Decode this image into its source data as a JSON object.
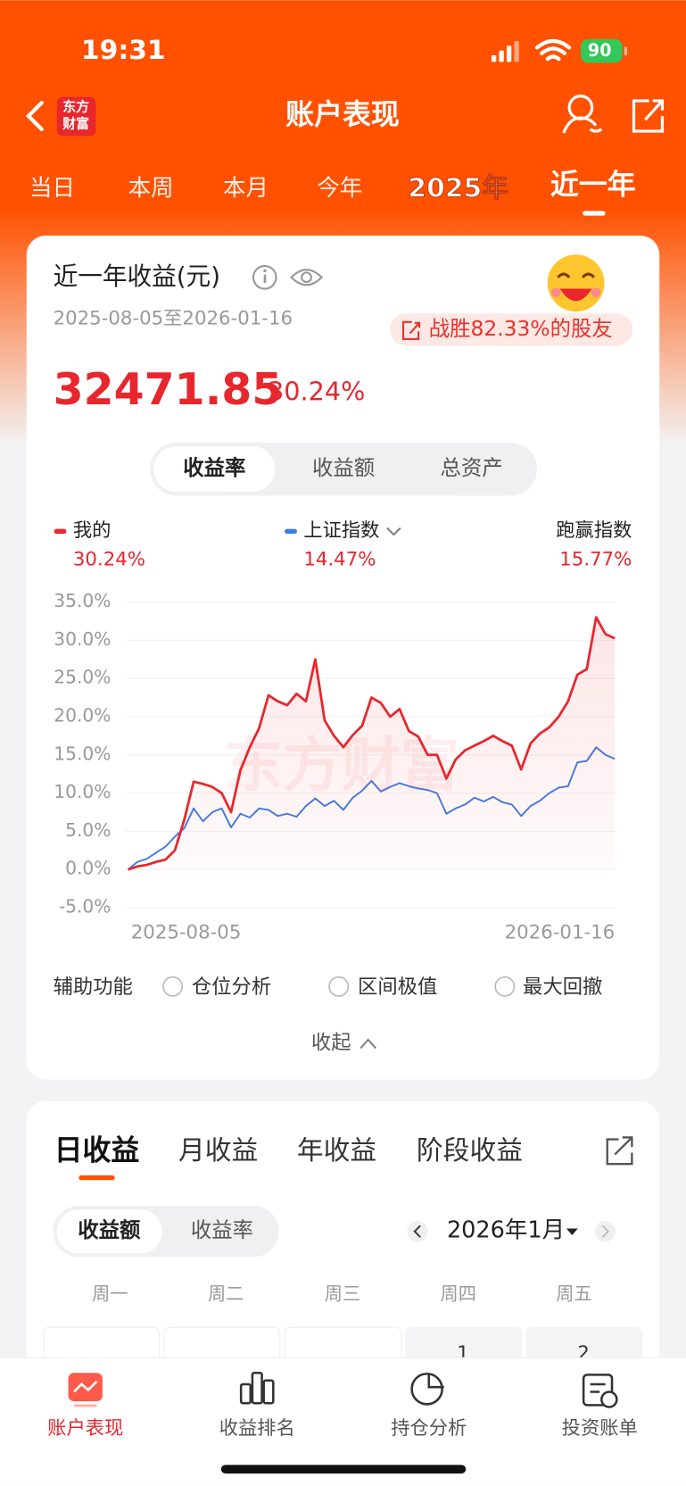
{
  "status": {
    "time": "19:31",
    "battery": "90"
  },
  "nav": {
    "logo": [
      "东方",
      "财富"
    ],
    "title": "账户表现"
  },
  "period_tabs": [
    "当日",
    "本周",
    "本月",
    "今年",
    "2025年",
    "近一年"
  ],
  "summary": {
    "title": "近一年收益(元)",
    "date_range": "2025-08-05至2026-01-16",
    "badge": "战胜82.33%的股友",
    "amount": "32471.85",
    "return_pct": "30.24%"
  },
  "segments": [
    "收益率",
    "收益额",
    "总资产"
  ],
  "legend_values": [
    "30.24%",
    "14.47%"
  ],
  "outperform": {
    "label": "跑赢指数",
    "value": "15.77%"
  },
  "chart_data": {
    "type": "line",
    "watermark": "东方财富",
    "categories": [
      "2025-08-05",
      null,
      null,
      null,
      null,
      null,
      null,
      null,
      null,
      null,
      null,
      null,
      null,
      null,
      null,
      null,
      null,
      null,
      null,
      null,
      null,
      null,
      null,
      null,
      null,
      null,
      null,
      null,
      null,
      null,
      null,
      null,
      null,
      null,
      null,
      null,
      null,
      null,
      null,
      null,
      null,
      null,
      null,
      null,
      null,
      null,
      null,
      null,
      null,
      null,
      null,
      null,
      "2026-01-16"
    ],
    "series": [
      {
        "name": "我的",
        "color": "#e8262d",
        "values": [
          0,
          0.4,
          0.6,
          1.0,
          1.3,
          2.5,
          6.5,
          11.5,
          11.2,
          10.8,
          10.0,
          7.5,
          13.0,
          16.0,
          18.5,
          22.8,
          22.0,
          21.5,
          23.0,
          22.0,
          27.5,
          19.5,
          17.5,
          16.0,
          17.6,
          18.8,
          22.5,
          21.8,
          20.0,
          21.0,
          18.1,
          17.4,
          15.0,
          15.0,
          11.9,
          14.4,
          15.6,
          16.2,
          16.8,
          17.5,
          16.8,
          16.2,
          13.1,
          16.5,
          17.8,
          18.6,
          20.0,
          22.0,
          25.5,
          26.2,
          33.0,
          30.8,
          30.24
        ]
      },
      {
        "name": "上证指数",
        "color": "#3d7be6",
        "values": [
          0,
          1.0,
          1.4,
          2.2,
          3.0,
          4.3,
          5.4,
          8.0,
          6.3,
          7.5,
          8.0,
          5.5,
          7.3,
          6.8,
          8.0,
          7.8,
          7.0,
          7.3,
          6.9,
          8.3,
          9.3,
          8.3,
          9.0,
          7.8,
          9.4,
          10.3,
          11.6,
          10.2,
          10.8,
          11.3,
          10.9,
          10.6,
          10.4,
          10.0,
          7.3,
          8.0,
          8.5,
          9.4,
          8.9,
          9.5,
          8.8,
          8.5,
          7.0,
          8.3,
          9.0,
          10.0,
          10.7,
          10.9,
          14.0,
          14.2,
          16.0,
          15.0,
          14.47
        ]
      }
    ],
    "ylim": [
      -5,
      35
    ],
    "yticks": [
      {
        "value": 35,
        "label": "35.0%"
      },
      {
        "value": 30,
        "label": "30.0%"
      },
      {
        "value": 25,
        "label": "25.0%"
      },
      {
        "value": 20,
        "label": "20.0%"
      },
      {
        "value": 15,
        "label": "15.0%"
      },
      {
        "value": 10,
        "label": "10.0%"
      },
      {
        "value": 5,
        "label": "5.0%"
      },
      {
        "value": 0,
        "label": "0.0%"
      },
      {
        "value": -5,
        "label": "-5.0%"
      }
    ],
    "grid": true
  },
  "helper": {
    "label": "辅助功能",
    "options": [
      "仓位分析",
      "区间极值",
      "最大回撤"
    ],
    "collapse": "收起"
  },
  "profit_tabs": [
    "日收益",
    "月收益",
    "年收益",
    "阶段收益"
  ],
  "toggle": [
    "收益额",
    "收益率"
  ],
  "month": "2026年1月",
  "weekdays": [
    "周一",
    "周二",
    "周三",
    "周四",
    "周五"
  ],
  "calendar_days": [
    "1",
    "2"
  ],
  "bottom_nav": [
    "账户表现",
    "收益排名",
    "持仓分析",
    "投资账单"
  ]
}
